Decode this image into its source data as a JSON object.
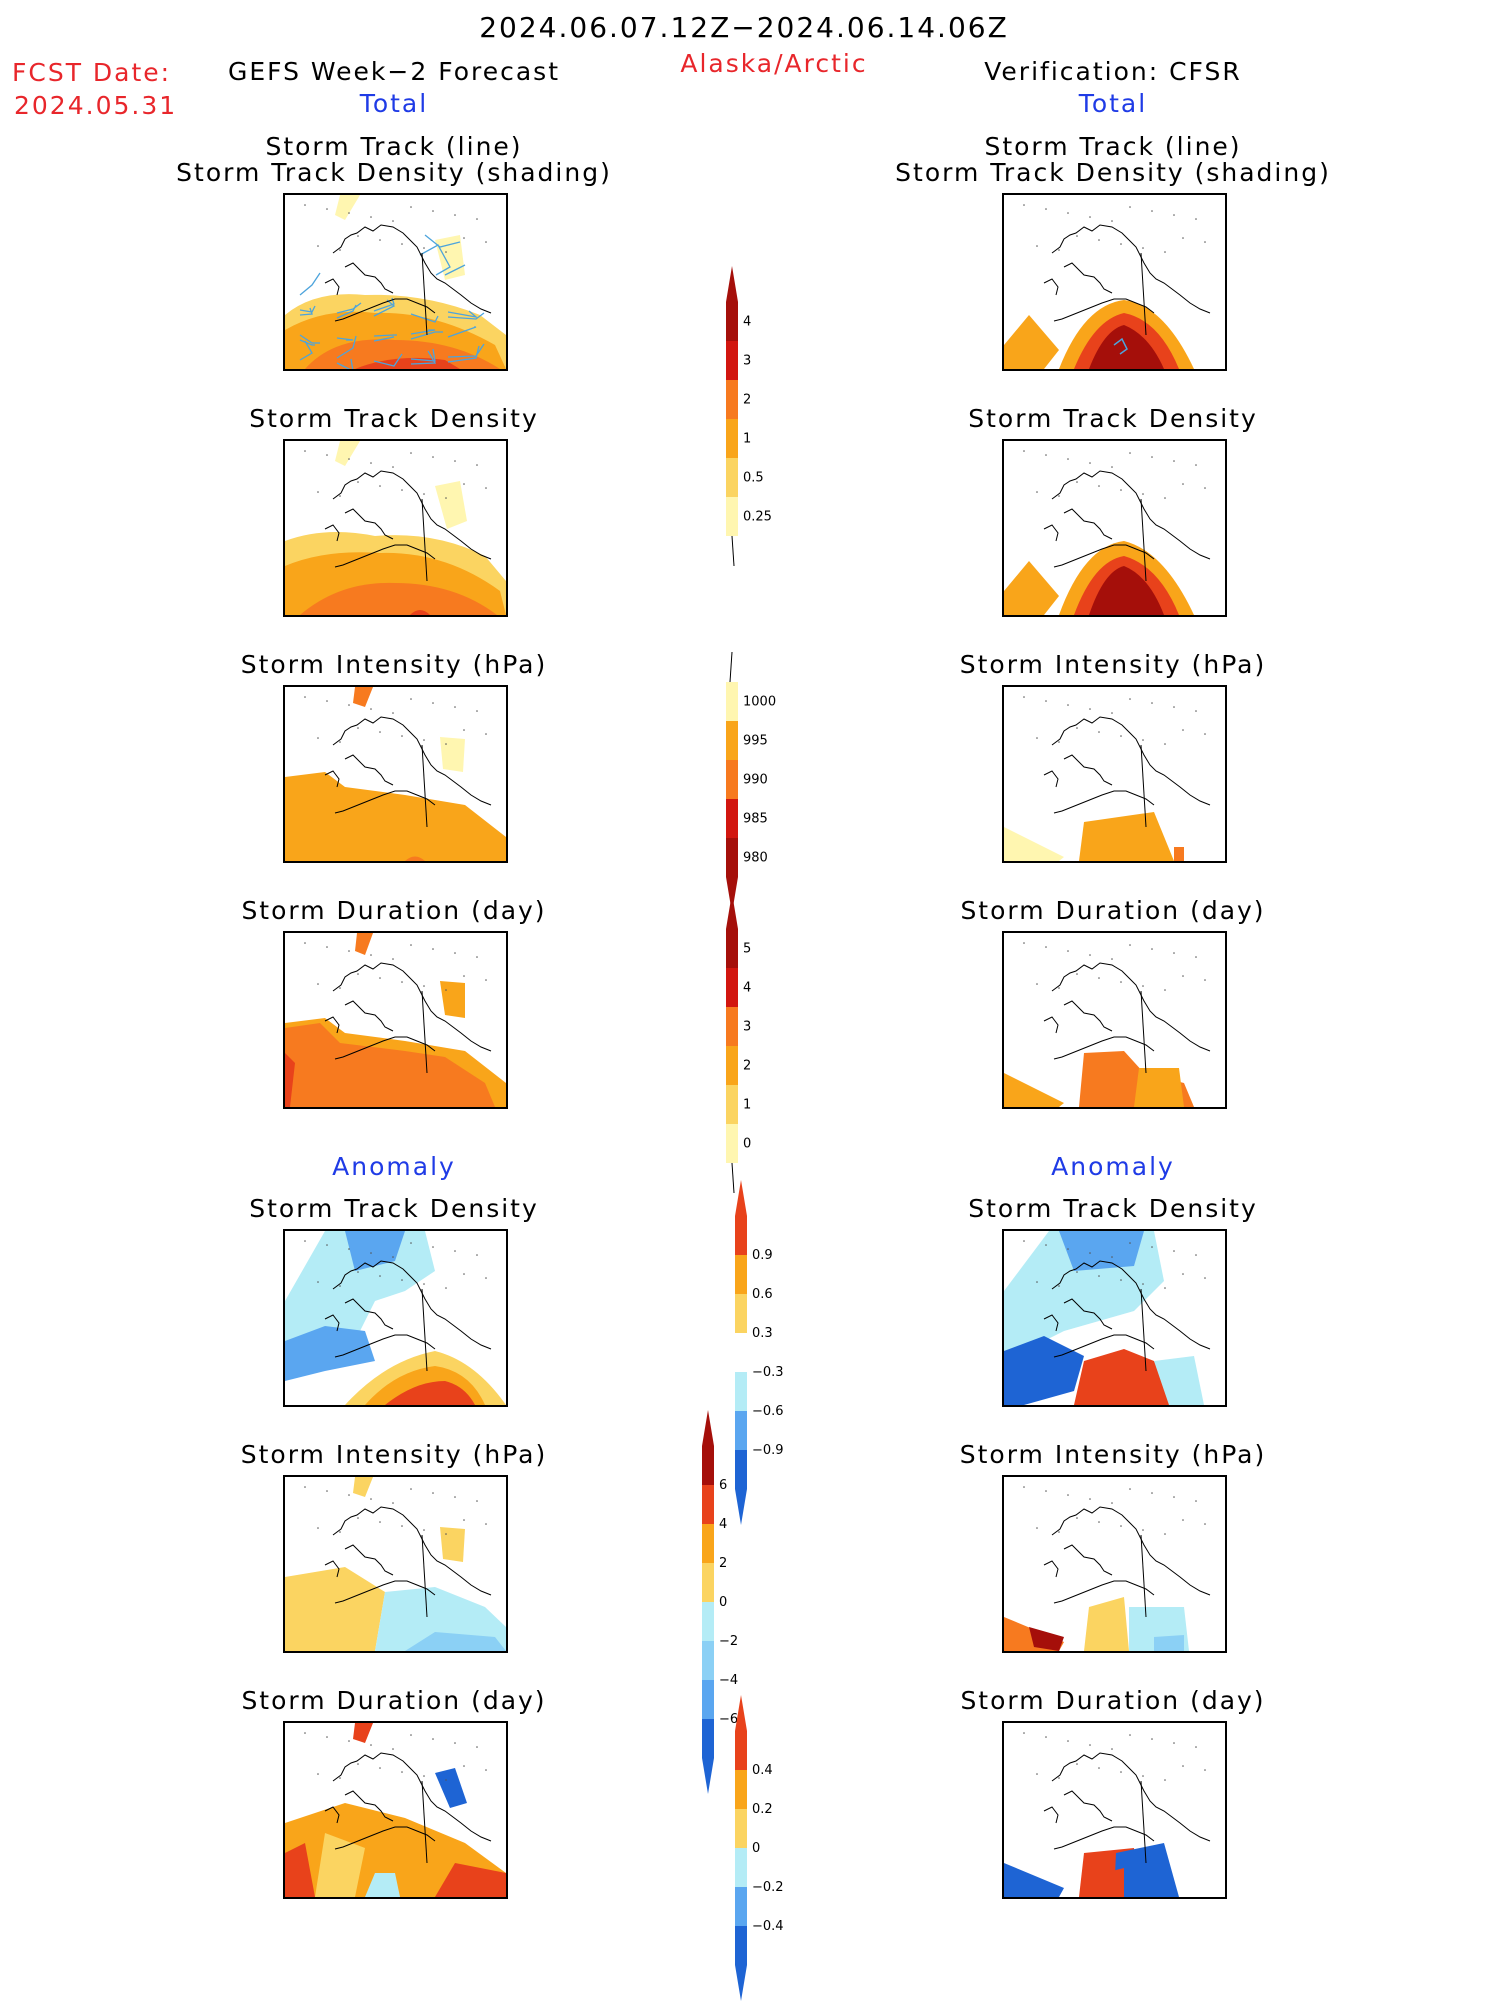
{
  "header": {
    "period": "2024.06.07.12Z−2024.06.14.06Z",
    "region": "Alaska/Arctic",
    "fcst_label": "FCST Date:",
    "fcst_date": "2024.05.31",
    "left_title": "GEFS Week−2 Forecast",
    "right_title": "Verification: CFSR",
    "total_label": "Total",
    "anomaly_label": "Anomaly"
  },
  "panels": {
    "track_line": "Storm Track (line)",
    "track_density_shading": "Storm Track Density (shading)",
    "track_density": "Storm Track Density",
    "intensity": "Storm Intensity (hPa)",
    "duration": "Storm Duration (day)"
  },
  "colors": {
    "c1": "#fff6b0",
    "c2": "#fbd461",
    "c3": "#f9a51a",
    "c4": "#f77a1f",
    "c5": "#e8421b",
    "c6": "#d2160f",
    "c7": "#a50f0a",
    "b1": "#b4ecf6",
    "b2": "#8bd0f5",
    "b3": "#5aa6f0",
    "b4": "#1e64d4",
    "track_lines": "#4da4dc"
  },
  "chart_data": [
    {
      "type": "heatmap",
      "name": "colorbar_track_density",
      "levels": [
        "4",
        "3",
        "2",
        "1",
        "0.5",
        "0.25"
      ],
      "colors": [
        "#a50f0a",
        "#d2160f",
        "#f77a1f",
        "#f9a51a",
        "#fbd461",
        "#fff6b0"
      ]
    },
    {
      "type": "heatmap",
      "name": "colorbar_intensity",
      "levels": [
        "1000",
        "995",
        "990",
        "985",
        "980"
      ],
      "colors": [
        "#fff6b0",
        "#f9a51a",
        "#f77a1f",
        "#d2160f",
        "#a50f0a"
      ]
    },
    {
      "type": "heatmap",
      "name": "colorbar_duration",
      "levels": [
        "5",
        "4",
        "3",
        "2",
        "1",
        "0"
      ],
      "colors": [
        "#a50f0a",
        "#d2160f",
        "#f77a1f",
        "#f9a51a",
        "#fbd461",
        "#fff6b0"
      ]
    },
    {
      "type": "heatmap",
      "name": "colorbar_track_density_anomaly",
      "levels": [
        "0.9",
        "0.6",
        "0.3",
        "−0.3",
        "−0.6",
        "−0.9"
      ],
      "colors": [
        "#e8421b",
        "#f9a51a",
        "#fbd461",
        "#ffffff",
        "#b4ecf6",
        "#5aa6f0",
        "#1e64d4"
      ]
    },
    {
      "type": "heatmap",
      "name": "colorbar_intensity_anomaly",
      "levels": [
        "6",
        "4",
        "2",
        "0",
        "−2",
        "−4",
        "−6"
      ],
      "colors": [
        "#a50f0a",
        "#e8421b",
        "#f9a51a",
        "#fbd461",
        "#b4ecf6",
        "#8bd0f5",
        "#5aa6f0",
        "#1e64d4"
      ]
    },
    {
      "type": "heatmap",
      "name": "colorbar_duration_anomaly",
      "levels": [
        "0.4",
        "0.2",
        "0",
        "−0.2",
        "−0.4"
      ],
      "colors": [
        "#e8421b",
        "#f9a51a",
        "#fbd461",
        "#b4ecf6",
        "#5aa6f0",
        "#1e64d4"
      ]
    }
  ]
}
